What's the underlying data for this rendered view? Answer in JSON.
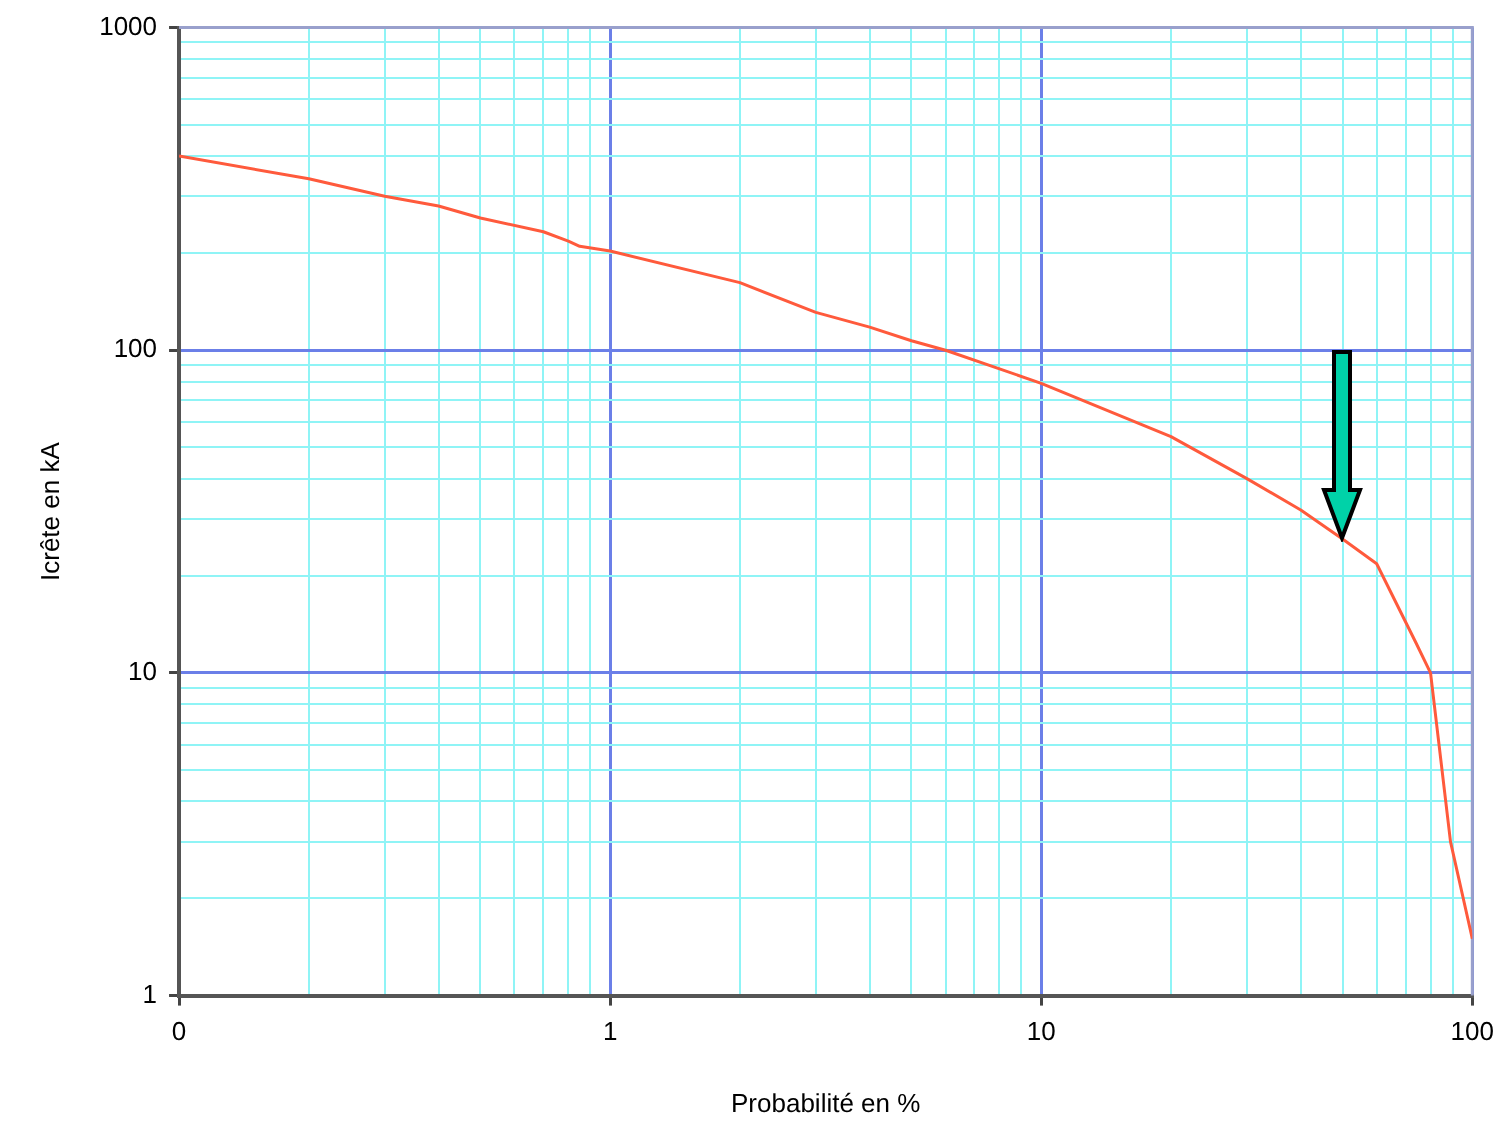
{
  "chart_data": {
    "type": "line",
    "xlabel": "Probabilité en %",
    "ylabel": "Icrête en kA",
    "log": "xy",
    "grid": true,
    "legend": false,
    "marker": "none",
    "line_style": "solid",
    "xlim": [
      0.1,
      100
    ],
    "xticks": [
      {
        "value": 0.1,
        "label": "0"
      },
      {
        "value": 0.2,
        "label": null
      },
      {
        "value": 0.3,
        "label": null
      },
      {
        "value": 0.4,
        "label": null
      },
      {
        "value": 0.5,
        "label": null
      },
      {
        "value": 0.6,
        "label": null
      },
      {
        "value": 0.7,
        "label": null
      },
      {
        "value": 0.8,
        "label": null
      },
      {
        "value": 0.9,
        "label": null
      },
      1,
      {
        "value": 2,
        "label": null
      },
      {
        "value": 3,
        "label": null
      },
      {
        "value": 4,
        "label": null
      },
      {
        "value": 5,
        "label": null
      },
      {
        "value": 6,
        "label": null
      },
      {
        "value": 7,
        "label": null
      },
      {
        "value": 8,
        "label": null
      },
      {
        "value": 9,
        "label": null
      },
      10,
      {
        "value": 20,
        "label": null
      },
      {
        "value": 30,
        "label": null
      },
      {
        "value": 40,
        "label": null
      },
      {
        "value": 50,
        "label": null
      },
      {
        "value": 60,
        "label": null
      },
      {
        "value": 70,
        "label": null
      },
      {
        "value": 80,
        "label": null
      },
      {
        "value": 90,
        "label": null
      },
      100
    ],
    "ylim": [
      1,
      1000
    ],
    "yticks": [
      1,
      {
        "value": 2,
        "label": null
      },
      {
        "value": 3,
        "label": null
      },
      {
        "value": 4,
        "label": null
      },
      {
        "value": 5,
        "label": null
      },
      {
        "value": 6,
        "label": null
      },
      {
        "value": 7,
        "label": null
      },
      {
        "value": 8,
        "label": null
      },
      {
        "value": 9,
        "label": null
      },
      10,
      {
        "value": 20,
        "label": null
      },
      {
        "value": 30,
        "label": null
      },
      {
        "value": 40,
        "label": null
      },
      {
        "value": 50,
        "label": null
      },
      {
        "value": 60,
        "label": null
      },
      {
        "value": 70,
        "label": null
      },
      {
        "value": 80,
        "label": null
      },
      {
        "value": 90,
        "label": null
      },
      100,
      {
        "value": 200,
        "label": null
      },
      {
        "value": 300,
        "label": null
      },
      {
        "value": 400,
        "label": null
      },
      {
        "value": 500,
        "label": null
      },
      {
        "value": 600,
        "label": null
      },
      {
        "value": 700,
        "label": null
      },
      {
        "value": 800,
        "label": null
      },
      {
        "value": 900,
        "label": null
      },
      1000
    ],
    "series": [
      {
        "color": "#ff5a3c",
        "x": [
          0.1,
          0.2,
          0.3,
          0.4,
          0.5,
          0.7,
          0.8,
          0.85,
          1,
          2,
          3,
          4,
          5,
          6,
          10,
          20,
          30,
          40,
          50,
          60,
          74,
          80,
          89,
          100
        ],
        "values": [
          400,
          340,
          300,
          280,
          257,
          233,
          218,
          210,
          203,
          162,
          131,
          118,
          107,
          100,
          79,
          54,
          40,
          32,
          26,
          21.8,
          12.4,
          10,
          3,
          1.5
        ]
      }
    ]
  }
}
